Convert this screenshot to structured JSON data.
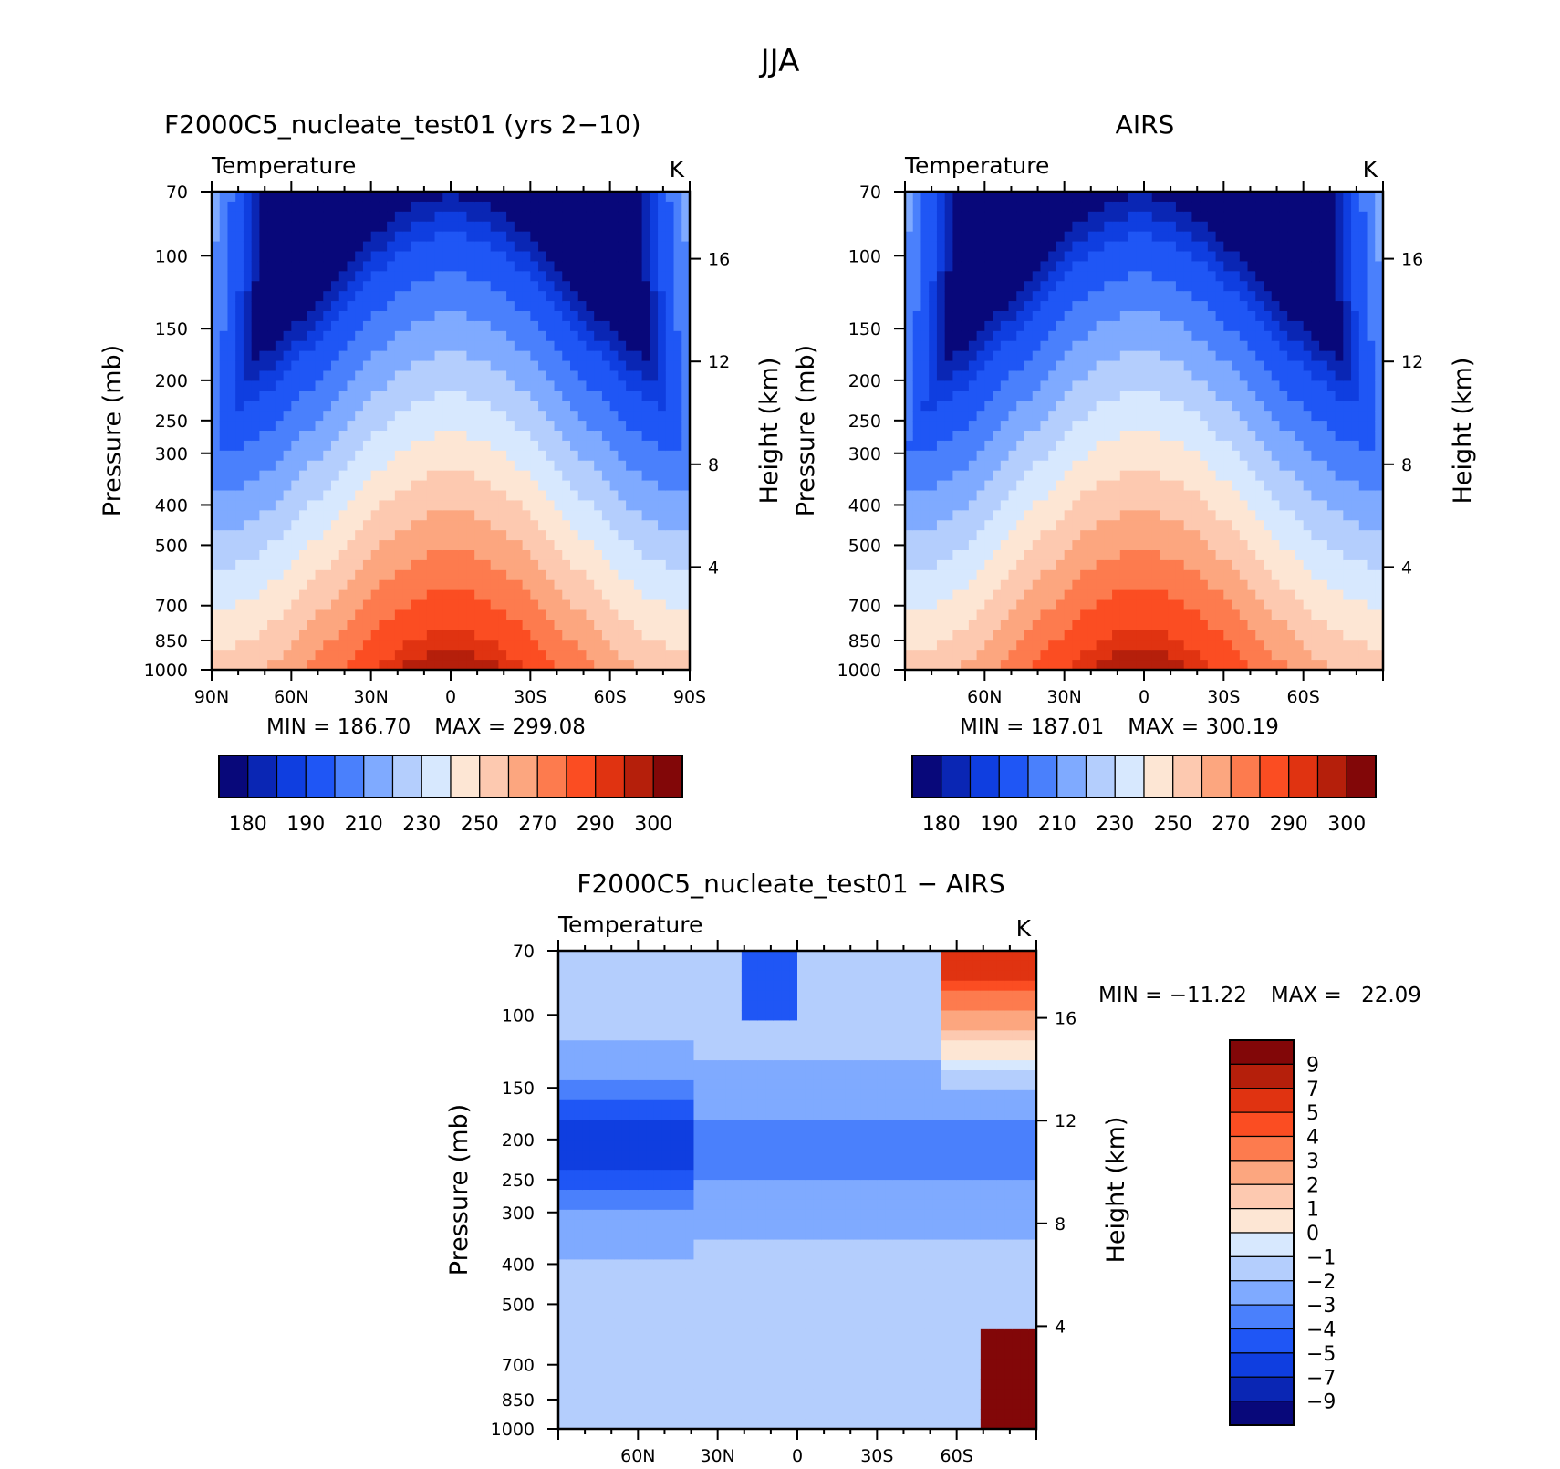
{
  "figure_title": "JJA",
  "chart_data": [
    {
      "id": "model",
      "type": "heatmap",
      "title": "F2000C5_nucleate_test01 (yrs 2−10)",
      "variable": "Temperature",
      "units": "K",
      "ylabel": "Pressure (mb)",
      "ylabel_right": "Height (km)",
      "y_ticks": [
        "70",
        "100",
        "150",
        "200",
        "250",
        "300",
        "400",
        "500",
        "700",
        "850",
        "1000"
      ],
      "y_tick_values": [
        70,
        100,
        150,
        200,
        250,
        300,
        400,
        500,
        700,
        850,
        1000
      ],
      "y_right_ticks": [
        "16",
        "12",
        "8",
        "4"
      ],
      "y_right_values": [
        16,
        12,
        8,
        4
      ],
      "x_ticks": [
        "90N",
        "60N",
        "30N",
        "0",
        "30S",
        "60S",
        "90S"
      ],
      "x_tick_values": [
        90,
        60,
        30,
        0,
        -30,
        -60,
        -90
      ],
      "xlim": [
        90,
        -90
      ],
      "ylim": [
        70,
        1000
      ],
      "y_scale": "log",
      "min_label": "MIN =",
      "min_value": "186.70",
      "max_label": "MAX =",
      "max_value": "299.08",
      "colorbar_labels": [
        "180",
        "190",
        "210",
        "230",
        "250",
        "270",
        "290",
        "300"
      ],
      "colorbar_colors": [
        "#08087a",
        "#0a26b4",
        "#0f3ee0",
        "#1f56f5",
        "#4a80fc",
        "#7faaff",
        "#b4cefd",
        "#d7e8fe",
        "#fde6d4",
        "#fdc9b0",
        "#fca67f",
        "#fd7b4e",
        "#fb4d22",
        "#e03311",
        "#b51f0b",
        "#820708"
      ],
      "colorbar_orientation": "horizontal"
    },
    {
      "id": "obs",
      "type": "heatmap",
      "title": "AIRS",
      "variable": "Temperature",
      "units": "K",
      "ylabel": "Pressure (mb)",
      "ylabel_right": "Height (km)",
      "y_ticks": [
        "70",
        "100",
        "150",
        "200",
        "250",
        "300",
        "400",
        "500",
        "700",
        "850",
        "1000"
      ],
      "y_tick_values": [
        70,
        100,
        150,
        200,
        250,
        300,
        400,
        500,
        700,
        850,
        1000
      ],
      "y_right_ticks": [
        "16",
        "12",
        "8",
        "4"
      ],
      "y_right_values": [
        16,
        12,
        8,
        4
      ],
      "x_ticks": [
        "60N",
        "30N",
        "0",
        "30S",
        "60S"
      ],
      "x_tick_values": [
        60,
        30,
        0,
        -30,
        -60
      ],
      "xlim": [
        90,
        -90
      ],
      "ylim": [
        70,
        1000
      ],
      "y_scale": "log",
      "min_label": "MIN =",
      "min_value": "187.01",
      "max_label": "MAX =",
      "max_value": "300.19",
      "colorbar_labels": [
        "180",
        "190",
        "210",
        "230",
        "250",
        "270",
        "290",
        "300"
      ],
      "colorbar_colors": [
        "#08087a",
        "#0a26b4",
        "#0f3ee0",
        "#1f56f5",
        "#4a80fc",
        "#7faaff",
        "#b4cefd",
        "#d7e8fe",
        "#fde6d4",
        "#fdc9b0",
        "#fca67f",
        "#fd7b4e",
        "#fb4d22",
        "#e03311",
        "#b51f0b",
        "#820708"
      ],
      "colorbar_orientation": "horizontal"
    },
    {
      "id": "diff",
      "type": "heatmap",
      "title": "F2000C5_nucleate_test01 − AIRS",
      "variable": "Temperature",
      "units": "K",
      "ylabel": "Pressure (mb)",
      "ylabel_right": "Height (km)",
      "y_ticks": [
        "70",
        "100",
        "150",
        "200",
        "250",
        "300",
        "400",
        "500",
        "700",
        "850",
        "1000"
      ],
      "y_tick_values": [
        70,
        100,
        150,
        200,
        250,
        300,
        400,
        500,
        700,
        850,
        1000
      ],
      "y_right_ticks": [
        "16",
        "12",
        "8",
        "4"
      ],
      "y_right_values": [
        16,
        12,
        8,
        4
      ],
      "x_ticks": [
        "60N",
        "30N",
        "0",
        "30S",
        "60S"
      ],
      "x_tick_values": [
        60,
        30,
        0,
        -30,
        -60
      ],
      "xlim": [
        90,
        -90
      ],
      "ylim": [
        70,
        1000
      ],
      "y_scale": "log",
      "min_label": "MIN =",
      "min_value": "−11.22",
      "max_label": "MAX =",
      "max_value": "22.09",
      "colorbar_labels": [
        "9",
        "7",
        "5",
        "4",
        "3",
        "2",
        "1",
        "0",
        "−1",
        "−2",
        "−3",
        "−4",
        "−5",
        "−7",
        "−9"
      ],
      "colorbar_colors": [
        "#820708",
        "#b51f0b",
        "#e03311",
        "#fb4d22",
        "#fd7b4e",
        "#fca67f",
        "#fdc9b0",
        "#fde6d4",
        "#d7e8fe",
        "#b4cefd",
        "#7faaff",
        "#4a80fc",
        "#1f56f5",
        "#0f3ee0",
        "#0a26b4",
        "#08087a"
      ],
      "colorbar_orientation": "vertical"
    }
  ]
}
